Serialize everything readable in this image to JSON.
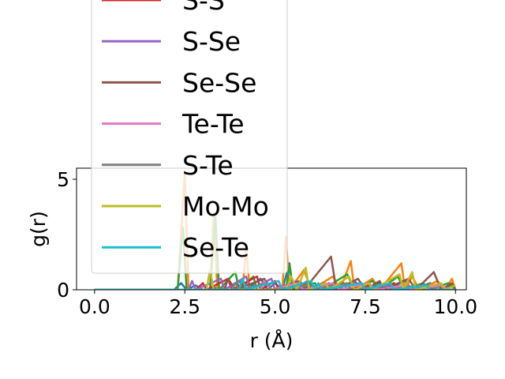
{
  "chart_data": {
    "type": "line",
    "xlabel": "r (Å)",
    "ylabel": "g(r)",
    "xlim": [
      -0.5,
      10.3
    ],
    "ylim": [
      0,
      5.5
    ],
    "x_ticks": [
      0.0,
      2.5,
      5.0,
      7.5,
      10.0
    ],
    "x_tick_labels": [
      "0.0",
      "2.5",
      "5.0",
      "7.5",
      "10.0"
    ],
    "y_ticks": [
      0,
      5
    ],
    "y_tick_labels": [
      "0",
      "5"
    ],
    "grid": false,
    "legend_position": "upper-left, partly above the axes",
    "series": [
      {
        "name": "",
        "color": "#1f77b4",
        "points": [
          [
            0,
            0
          ],
          [
            2.2,
            0
          ],
          [
            2.4,
            0.3
          ],
          [
            2.55,
            0
          ],
          [
            2.8,
            0.2
          ],
          [
            3.0,
            0
          ],
          [
            3.4,
            0.1
          ],
          [
            3.6,
            0
          ],
          [
            4.0,
            0.4
          ],
          [
            4.2,
            0
          ],
          [
            4.6,
            0.5
          ],
          [
            4.8,
            0
          ],
          [
            5.0,
            0.3
          ],
          [
            5.2,
            0
          ],
          [
            5.4,
            1.2
          ],
          [
            5.5,
            0
          ],
          [
            5.9,
            0.4
          ],
          [
            6.1,
            0
          ],
          [
            6.5,
            0.3
          ],
          [
            6.7,
            0
          ],
          [
            7.2,
            0.4
          ],
          [
            7.4,
            0
          ],
          [
            7.9,
            0.3
          ],
          [
            8.1,
            0
          ],
          [
            8.6,
            0.4
          ],
          [
            8.8,
            0
          ],
          [
            9.3,
            0.3
          ],
          [
            9.5,
            0
          ],
          [
            9.9,
            0.2
          ]
        ]
      },
      {
        "name": "",
        "color": "#ff7f0e",
        "points": [
          [
            0,
            0
          ],
          [
            2.3,
            0
          ],
          [
            2.5,
            5.3
          ],
          [
            2.6,
            0
          ],
          [
            3.2,
            0
          ],
          [
            3.3,
            3.5
          ],
          [
            3.4,
            0
          ],
          [
            4.1,
            0
          ],
          [
            4.2,
            1.9
          ],
          [
            4.3,
            0
          ],
          [
            5.2,
            0
          ],
          [
            5.3,
            2.4
          ],
          [
            5.4,
            0
          ],
          [
            5.8,
            0.9
          ],
          [
            6.0,
            0
          ],
          [
            6.6,
            0.6
          ],
          [
            6.8,
            0
          ],
          [
            7.1,
            1.3
          ],
          [
            7.2,
            0
          ],
          [
            7.7,
            0.5
          ],
          [
            7.9,
            0
          ],
          [
            8.5,
            1.2
          ],
          [
            8.6,
            0
          ],
          [
            8.8,
            0.6
          ],
          [
            9.0,
            0
          ],
          [
            9.5,
            0.4
          ],
          [
            9.7,
            0
          ],
          [
            9.9,
            0.5
          ],
          [
            10.0,
            0
          ]
        ]
      },
      {
        "name": "",
        "color": "#2ca02c",
        "points": [
          [
            0,
            0
          ],
          [
            2.3,
            0
          ],
          [
            2.45,
            2.8
          ],
          [
            2.55,
            0
          ],
          [
            3.2,
            0
          ],
          [
            3.35,
            3.3
          ],
          [
            3.45,
            0
          ],
          [
            3.9,
            0.8
          ],
          [
            4.0,
            0
          ],
          [
            4.4,
            0.6
          ],
          [
            4.5,
            0
          ],
          [
            5.3,
            0
          ],
          [
            5.4,
            1.1
          ],
          [
            5.5,
            0
          ],
          [
            6.1,
            0.3
          ],
          [
            6.3,
            0
          ],
          [
            7.0,
            0.7
          ],
          [
            7.2,
            0
          ],
          [
            7.7,
            0.4
          ],
          [
            7.9,
            0
          ],
          [
            8.4,
            0.6
          ],
          [
            8.6,
            0
          ],
          [
            9.1,
            0.3
          ],
          [
            9.3,
            0
          ],
          [
            9.8,
            0.3
          ],
          [
            10.0,
            0
          ]
        ]
      },
      {
        "name": "S-S",
        "color": "#d62728",
        "points": [
          [
            0,
            0
          ],
          [
            2.8,
            0
          ],
          [
            3.0,
            0.3
          ],
          [
            3.1,
            0
          ],
          [
            3.7,
            0.5
          ],
          [
            3.8,
            0
          ],
          [
            4.5,
            0.6
          ],
          [
            4.6,
            0
          ],
          [
            5.0,
            0.4
          ],
          [
            5.1,
            0
          ],
          [
            5.9,
            0.3
          ],
          [
            6.0,
            0
          ],
          [
            6.9,
            0.3
          ],
          [
            7.0,
            0
          ],
          [
            7.6,
            0.2
          ],
          [
            7.8,
            0
          ],
          [
            8.3,
            0.3
          ],
          [
            8.5,
            0
          ],
          [
            9.2,
            0.2
          ],
          [
            9.4,
            0
          ],
          [
            10.0,
            0
          ]
        ]
      },
      {
        "name": "S-Se",
        "color": "#9467bd",
        "points": [
          [
            0,
            0
          ],
          [
            2.6,
            0
          ],
          [
            2.7,
            0.4
          ],
          [
            2.8,
            0
          ],
          [
            3.5,
            0.5
          ],
          [
            3.6,
            0
          ],
          [
            4.2,
            0.6
          ],
          [
            4.3,
            0
          ],
          [
            4.9,
            0.5
          ],
          [
            5.0,
            0
          ],
          [
            5.6,
            0.4
          ],
          [
            5.7,
            0
          ],
          [
            6.4,
            0.3
          ],
          [
            6.5,
            0
          ],
          [
            7.3,
            0.3
          ],
          [
            7.5,
            0
          ],
          [
            8.2,
            0.2
          ],
          [
            8.4,
            0
          ],
          [
            9.4,
            0.2
          ],
          [
            9.5,
            0
          ],
          [
            10.0,
            0
          ]
        ]
      },
      {
        "name": "Se-Se",
        "color": "#8c564b",
        "points": [
          [
            0,
            0
          ],
          [
            3.6,
            0
          ],
          [
            3.7,
            0.5
          ],
          [
            3.9,
            0
          ],
          [
            4.7,
            0.5
          ],
          [
            4.9,
            0
          ],
          [
            5.7,
            0.4
          ],
          [
            5.8,
            0
          ],
          [
            6.55,
            1.5
          ],
          [
            6.7,
            0
          ],
          [
            7.3,
            0.5
          ],
          [
            7.5,
            0
          ],
          [
            7.9,
            0.4
          ],
          [
            8.0,
            0
          ],
          [
            8.7,
            0.5
          ],
          [
            8.9,
            0
          ],
          [
            9.4,
            0.8
          ],
          [
            9.6,
            0
          ],
          [
            9.9,
            0.3
          ],
          [
            10.0,
            0
          ]
        ]
      },
      {
        "name": "Te-Te",
        "color": "#e377c2",
        "points": [
          [
            0,
            0
          ],
          [
            4.6,
            0
          ],
          [
            4.7,
            0.4
          ],
          [
            4.9,
            0
          ],
          [
            5.6,
            0.3
          ],
          [
            5.8,
            0
          ],
          [
            6.6,
            0.3
          ],
          [
            6.8,
            0
          ],
          [
            7.6,
            0.3
          ],
          [
            7.8,
            0
          ],
          [
            8.6,
            0.2
          ],
          [
            8.8,
            0
          ],
          [
            9.6,
            0.2
          ],
          [
            9.8,
            0
          ],
          [
            10.0,
            0
          ]
        ]
      },
      {
        "name": "S-Te",
        "color": "#7f7f7f",
        "points": [
          [
            0,
            0
          ],
          [
            3.8,
            0
          ],
          [
            3.9,
            0.3
          ],
          [
            4.0,
            0
          ],
          [
            4.8,
            0.3
          ],
          [
            4.9,
            0
          ],
          [
            5.9,
            0.2
          ],
          [
            6.0,
            0
          ],
          [
            7.0,
            0.3
          ],
          [
            7.1,
            0
          ],
          [
            8.0,
            0.2
          ],
          [
            8.1,
            0
          ],
          [
            9.0,
            0.2
          ],
          [
            9.1,
            0
          ],
          [
            10.0,
            0
          ]
        ]
      },
      {
        "name": "Mo-Mo",
        "color": "#bcbd22",
        "points": [
          [
            0,
            0
          ],
          [
            3.1,
            0
          ],
          [
            3.2,
            0.9
          ],
          [
            3.3,
            0
          ],
          [
            5.3,
            0
          ],
          [
            5.45,
            0.6
          ],
          [
            5.6,
            0
          ],
          [
            5.85,
            1.0
          ],
          [
            5.95,
            0
          ],
          [
            6.4,
            0.3
          ],
          [
            6.5,
            0
          ],
          [
            7.05,
            0.6
          ],
          [
            7.2,
            0
          ],
          [
            7.6,
            0.3
          ],
          [
            7.7,
            0
          ],
          [
            8.45,
            0.7
          ],
          [
            8.55,
            0
          ],
          [
            8.8,
            0.8
          ],
          [
            8.9,
            0
          ],
          [
            9.6,
            0.3
          ],
          [
            9.7,
            0
          ],
          [
            10.0,
            0.2
          ]
        ]
      },
      {
        "name": "Se-Te",
        "color": "#17becf",
        "points": [
          [
            0,
            0
          ],
          [
            4.0,
            0
          ],
          [
            4.1,
            0.5
          ],
          [
            4.2,
            0
          ],
          [
            5.1,
            0.4
          ],
          [
            5.2,
            0
          ],
          [
            6.0,
            0.4
          ],
          [
            6.1,
            0
          ],
          [
            6.2,
            0.3
          ],
          [
            6.3,
            0
          ],
          [
            7.4,
            0.3
          ],
          [
            7.5,
            0
          ],
          [
            8.2,
            0.3
          ],
          [
            8.3,
            0
          ],
          [
            9.2,
            0.2
          ],
          [
            9.3,
            0
          ],
          [
            10.0,
            0
          ]
        ]
      }
    ],
    "legend": {
      "entries": [
        {
          "label": "S-S",
          "color": "#d62728",
          "partially_visible": true
        },
        {
          "label": "S-Se",
          "color": "#9467bd"
        },
        {
          "label": "Se-Se",
          "color": "#8c564b"
        },
        {
          "label": "Te-Te",
          "color": "#e377c2"
        },
        {
          "label": "S-Te",
          "color": "#7f7f7f"
        },
        {
          "label": "Mo-Mo",
          "color": "#bcbd22"
        },
        {
          "label": "Se-Te",
          "color": "#17becf"
        }
      ]
    }
  }
}
